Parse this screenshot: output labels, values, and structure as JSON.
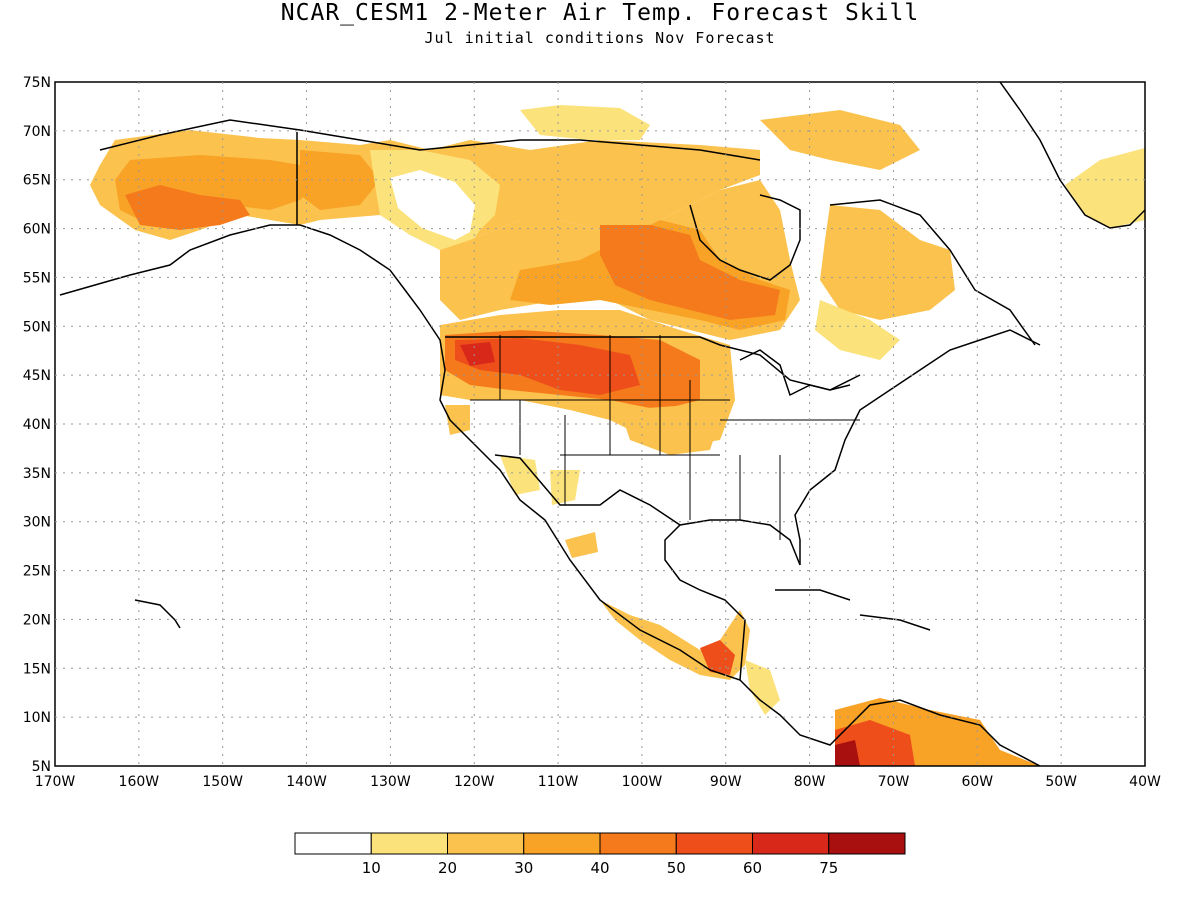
{
  "header": {
    "title": "NCAR_CESM1 2-Meter Air Temp. Forecast Skill",
    "subtitle": "Jul initial conditions  Nov Forecast"
  },
  "map": {
    "lon_range": [
      -170,
      -40
    ],
    "lat_range": [
      5,
      75
    ],
    "lon_ticks": [
      "170W",
      "160W",
      "150W",
      "140W",
      "130W",
      "120W",
      "110W",
      "100W",
      "90W",
      "80W",
      "70W",
      "60W",
      "50W",
      "40W"
    ],
    "lat_ticks": [
      "75N",
      "70N",
      "65N",
      "60N",
      "55N",
      "50N",
      "45N",
      "40N",
      "35N",
      "30N",
      "25N",
      "20N",
      "15N",
      "10N",
      "5N"
    ],
    "gridlines": true,
    "colors": {
      "c10_20": "#fbe27a",
      "c20_30": "#fbc24e",
      "c30_40": "#f8a226",
      "c40_50": "#f47a1c",
      "c50_60": "#ee4f1a",
      "c60_75": "#d8281a",
      "c75": "#a80f0f",
      "land_outline": "#000000"
    }
  },
  "colorbar": {
    "labels": [
      "10",
      "20",
      "30",
      "40",
      "50",
      "60",
      "75"
    ],
    "colors": [
      "#ffffff",
      "#fbe27a",
      "#fbc24e",
      "#f8a226",
      "#f47a1c",
      "#ee4f1a",
      "#d8281a",
      "#a80f0f"
    ]
  }
}
